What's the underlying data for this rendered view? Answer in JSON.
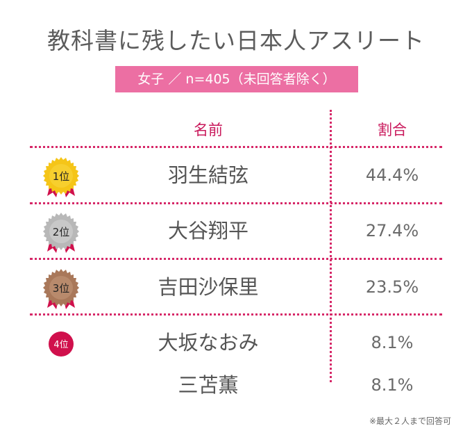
{
  "title": "教科書に残したい日本人アスリート",
  "subtitle": "女子 ／ n=405（未回答者除く）",
  "columns": {
    "name": "名前",
    "ratio": "割合"
  },
  "rank_labels": {
    "r1": "1位",
    "r2": "2位",
    "r3": "3位",
    "r4": "4位"
  },
  "medal_colors": {
    "gold": "#f5c518",
    "silver": "#b8b8b8",
    "bronze": "#a9785a",
    "fourth": "#d0104c",
    "ribbon": "#d0104c"
  },
  "note": "※最大２人まで回答可",
  "chart_data": {
    "type": "table",
    "columns": [
      "名前",
      "割合"
    ],
    "rows": [
      {
        "rank": "1位",
        "name": "羽生結弦",
        "ratio": "44.4%"
      },
      {
        "rank": "2位",
        "name": "大谷翔平",
        "ratio": "27.4%"
      },
      {
        "rank": "3位",
        "name": "吉田沙保里",
        "ratio": "23.5%"
      },
      {
        "rank": "4位",
        "name": "大坂なおみ",
        "ratio": "8.1%"
      },
      {
        "rank": "4位",
        "name": "三苫薫",
        "ratio": "8.1%"
      }
    ]
  }
}
